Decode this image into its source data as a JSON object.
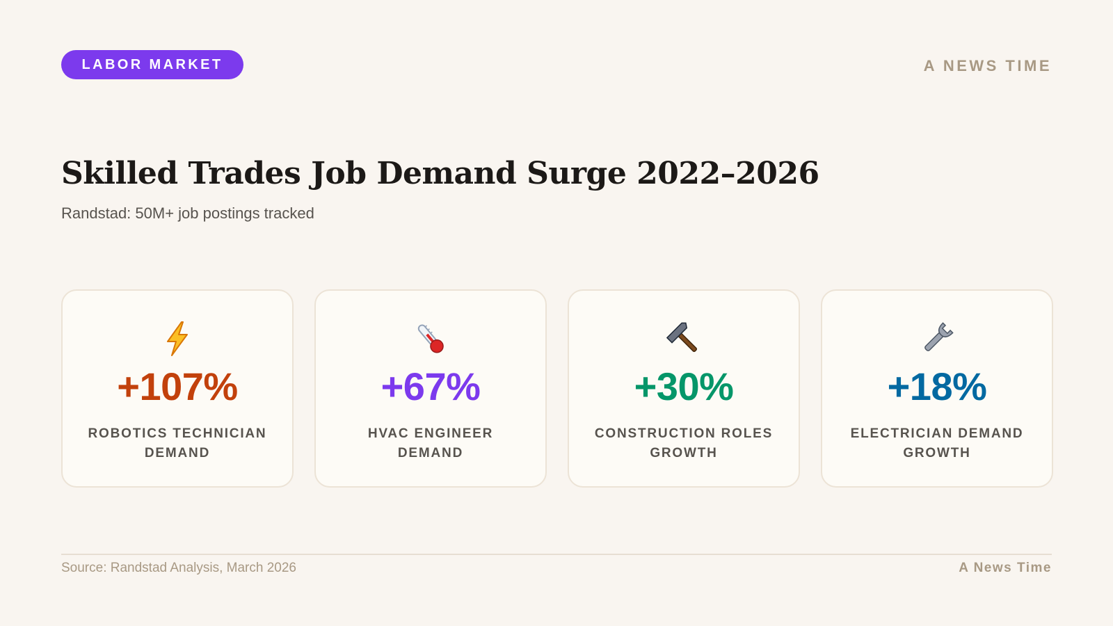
{
  "header": {
    "tag_label": "LABOR MARKET",
    "brand": "A NEWS TIME"
  },
  "headline": {
    "title": "Skilled Trades Job Demand Surge 2022–2026",
    "subtitle": "Randstad: 50M+ job postings tracked"
  },
  "stats": [
    {
      "icon": "lightning-icon",
      "value": "+107%",
      "label": "ROBOTICS TECHNICIAN DEMAND",
      "color": "#c2410c"
    },
    {
      "icon": "thermometer-icon",
      "value": "+67%",
      "label": "HVAC ENGINEER DEMAND",
      "color": "#7c3aed"
    },
    {
      "icon": "hammer-icon",
      "value": "+30%",
      "label": "CONSTRUCTION ROLES GROWTH",
      "color": "#059669"
    },
    {
      "icon": "wrench-icon",
      "value": "+18%",
      "label": "ELECTRICIAN DEMAND GROWTH",
      "color": "#0369a1"
    }
  ],
  "footer": {
    "source": "Source: Randstad Analysis, March 2026",
    "brand": "A News Time"
  },
  "colors": {
    "accent": "#7c3aed",
    "background": "#f9f5f0"
  }
}
